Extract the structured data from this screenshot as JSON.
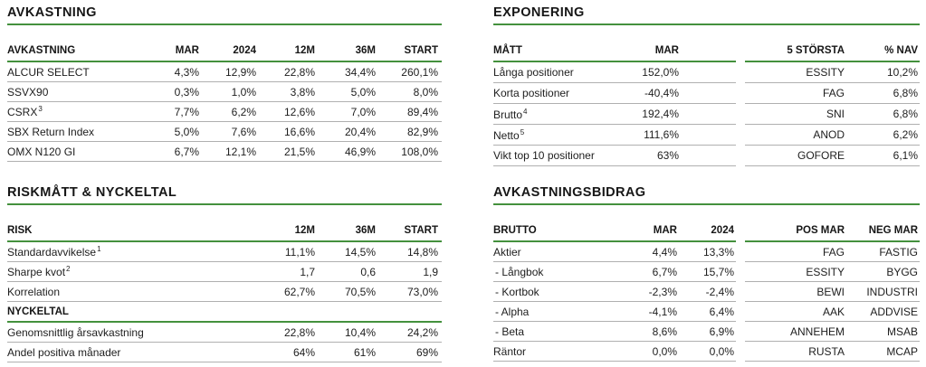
{
  "colors": {
    "accent_green": "#44913d",
    "divider_gray": "#b0b0b0",
    "text": "#1d1d1d"
  },
  "sections": {
    "avkastning": {
      "title": "AVKASTNING",
      "table": {
        "headers": [
          "AVKASTNING",
          "MAR",
          "2024",
          "12M",
          "36M",
          "START"
        ],
        "rows": [
          {
            "cells": [
              "ALCUR SELECT",
              "4,3%",
              "12,9%",
              "22,8%",
              "34,4%",
              "260,1%"
            ]
          },
          {
            "cells": [
              "SSVX90",
              "0,3%",
              "1,0%",
              "3,8%",
              "5,0%",
              "8,0%"
            ]
          },
          {
            "cells": [
              {
                "text": "CSRX",
                "sup": "3"
              },
              "7,7%",
              "6,2%",
              "12,6%",
              "7,0%",
              "89,4%"
            ]
          },
          {
            "cells": [
              "SBX Return Index",
              "5,0%",
              "7,6%",
              "16,6%",
              "20,4%",
              "82,9%"
            ]
          },
          {
            "cells": [
              "OMX N120 GI",
              "6,7%",
              "12,1%",
              "21,5%",
              "46,9%",
              "108,0%"
            ]
          }
        ]
      }
    },
    "exponering": {
      "title": "EXPONERING",
      "positions_table": {
        "headers": [
          "MÅTT",
          "MAR"
        ],
        "rows": [
          {
            "cells": [
              "Långa positioner",
              "152,0%"
            ]
          },
          {
            "cells": [
              "Korta positioner",
              "-40,4%"
            ]
          },
          {
            "cells": [
              {
                "text": "Brutto",
                "sup": "4"
              },
              "192,4%"
            ]
          },
          {
            "cells": [
              {
                "text": "Netto",
                "sup": "5"
              },
              "111,6%"
            ]
          },
          {
            "cells": [
              "Vikt top 10 positioner",
              "63%"
            ]
          }
        ]
      },
      "largest_table": {
        "headers": [
          "5 STÖRSTA",
          "% NAV"
        ],
        "rows": [
          {
            "cells": [
              "ESSITY",
              "10,2%"
            ]
          },
          {
            "cells": [
              "FAG",
              "6,8%"
            ]
          },
          {
            "cells": [
              "SNI",
              "6,8%"
            ]
          },
          {
            "cells": [
              "ANOD",
              "6,2%"
            ]
          },
          {
            "cells": [
              "GOFORE",
              "6,1%"
            ]
          }
        ]
      }
    },
    "riskmatt": {
      "title": "RISKMÅTT & NYCKELTAL",
      "table": {
        "headers": [
          "RISK",
          "12M",
          "36M",
          "START"
        ],
        "rows": [
          {
            "cells": [
              {
                "text": "Standardavvikelse",
                "sup": "1"
              },
              "11,1%",
              "14,5%",
              "14,8%"
            ]
          },
          {
            "cells": [
              {
                "text": "Sharpe kvot",
                "sup": "2"
              },
              "1,7",
              "0,6",
              "1,9"
            ]
          },
          {
            "cells": [
              "Korrelation",
              "62,7%",
              "70,5%",
              "73,0%"
            ]
          },
          {
            "subheader": true,
            "cells": [
              "NYCKELTAL",
              "",
              "",
              ""
            ]
          },
          {
            "cells": [
              "Genomsnittlig årsavkastning",
              "22,8%",
              "10,4%",
              "24,2%"
            ]
          },
          {
            "cells": [
              "Andel positiva månader",
              "64%",
              "61%",
              "69%"
            ]
          }
        ]
      }
    },
    "avkastningsbidrag": {
      "title": "AVKASTNINGSBIDRAG",
      "brutto_table": {
        "headers": [
          "BRUTTO",
          "MAR",
          "2024"
        ],
        "rows": [
          {
            "cells": [
              "Aktier",
              "4,4%",
              "13,3%"
            ]
          },
          {
            "indent": true,
            "cells": [
              "- Långbok",
              "6,7%",
              "15,7%"
            ]
          },
          {
            "indent": true,
            "cells": [
              "- Kortbok",
              "-2,3%",
              "-2,4%"
            ]
          },
          {
            "indent": true,
            "cells": [
              "- Alpha",
              "-4,1%",
              "6,4%"
            ]
          },
          {
            "indent": true,
            "cells": [
              "- Beta",
              "8,6%",
              "6,9%"
            ]
          },
          {
            "cells": [
              "Räntor",
              "0,0%",
              "0,0%"
            ]
          }
        ]
      },
      "posneg_table": {
        "headers": [
          "POS MAR",
          "NEG MAR"
        ],
        "rows": [
          {
            "cells": [
              "FAG",
              "FASTIG"
            ]
          },
          {
            "cells": [
              "ESSITY",
              "BYGG"
            ]
          },
          {
            "cells": [
              "BEWI",
              "INDUSTRI"
            ]
          },
          {
            "cells": [
              "AAK",
              "ADDVISE"
            ]
          },
          {
            "cells": [
              "ANNEHEM",
              "MSAB"
            ]
          },
          {
            "cells": [
              "RUSTA",
              "MCAP"
            ]
          }
        ]
      }
    }
  }
}
